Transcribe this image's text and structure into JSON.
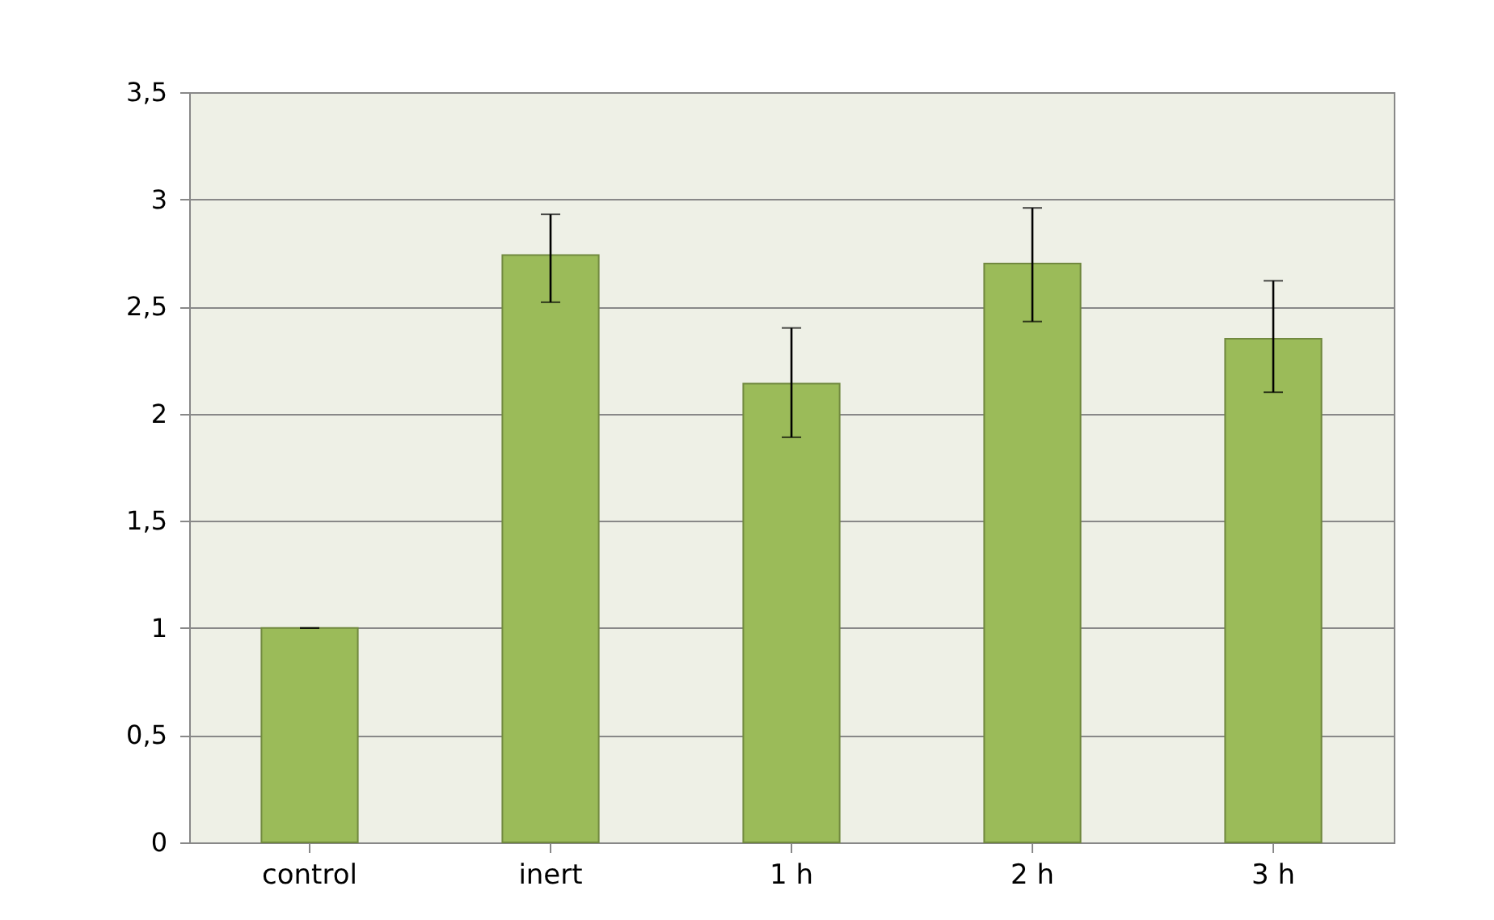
{
  "chart_data": {
    "type": "bar",
    "categories": [
      "control",
      "inert",
      "1 h",
      "2 h",
      "3 h"
    ],
    "values": [
      1.0,
      2.74,
      2.14,
      2.7,
      2.35
    ],
    "errors": [
      0,
      [
        2.52,
        2.93
      ],
      [
        1.89,
        2.4
      ],
      [
        2.43,
        2.96
      ],
      [
        2.1,
        2.62
      ]
    ],
    "color": "#9bbb59",
    "ylim": [
      0,
      3.5
    ],
    "yticks": [
      0,
      {
        "value": 0.5,
        "label": "0,5"
      },
      1,
      {
        "value": 1.5,
        "label": "1,5"
      },
      2,
      {
        "value": 2.5,
        "label": "2,5"
      },
      3,
      {
        "value": 3.5,
        "label": "3,5"
      }
    ],
    "grid": "y"
  }
}
